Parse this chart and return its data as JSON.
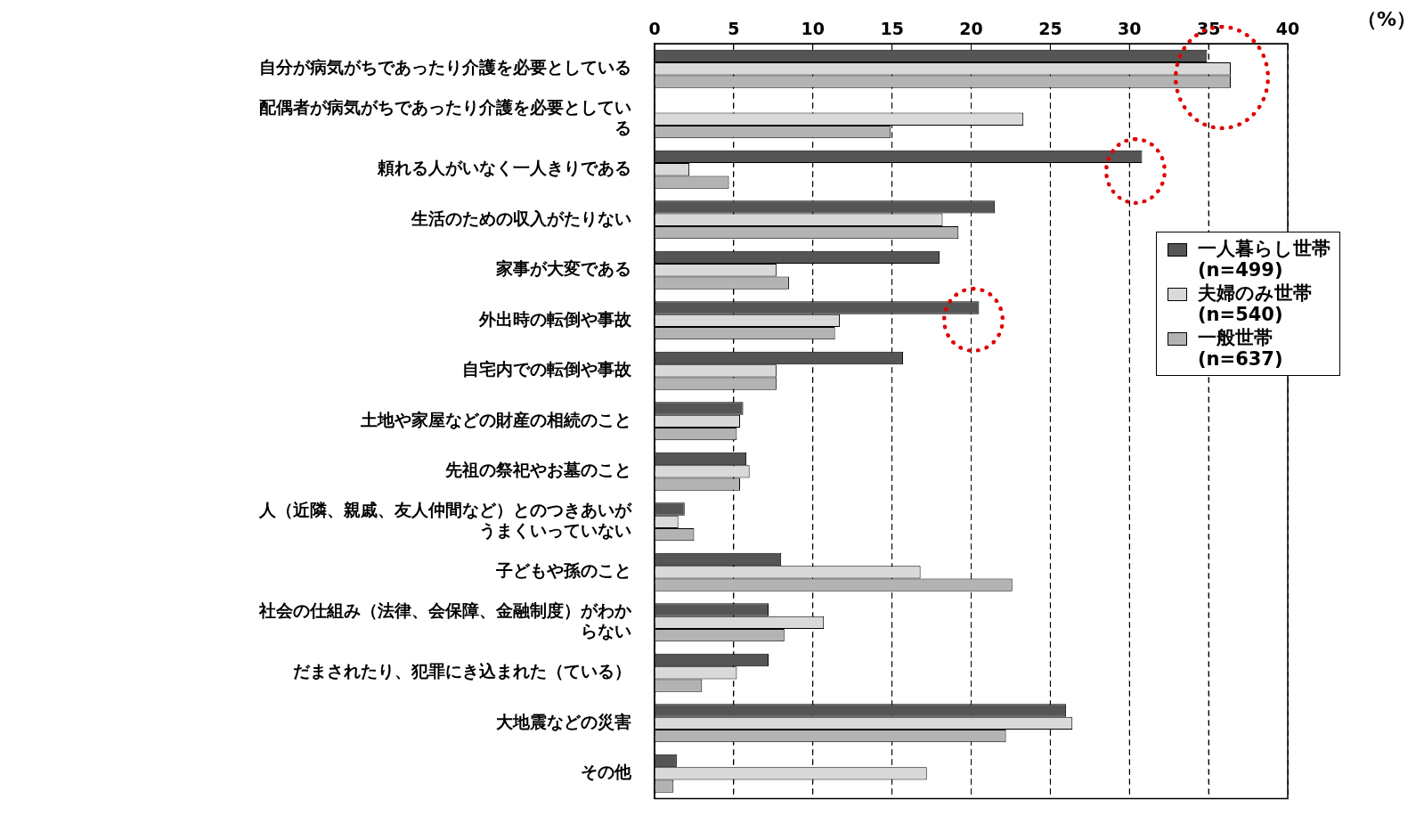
{
  "chart_data": {
    "type": "bar",
    "orientation": "horizontal",
    "xlabel": "（%）",
    "categories": [
      "自分が病気がちであったり介護を必要としている",
      "配偶者が病気がちであったり介護を必要としている",
      "頼れる人がいなく一人きりである",
      "生活のための収入がたりない",
      "家事が大変である",
      "外出時の転倒や事故",
      "自宅内での転倒や事故",
      "土地や家屋などの財産の相続のこと",
      "先祖の祭祀やお墓のこと",
      "人（近隣、親戚、友人仲間など）とのつきあいがうまくいっていない",
      "子どもや孫のこと",
      "社会の仕組み（法律、会保障、金融制度）がわからない",
      "だまされたり、犯罪にき込まれた（ている）",
      "大地震などの災害",
      "その他"
    ],
    "series": [
      {
        "name": "一人暮らし世帯\n(n=499)",
        "color": "#555555",
        "values": [
          34.9,
          null,
          30.8,
          21.5,
          18.0,
          20.5,
          15.7,
          5.6,
          5.8,
          1.9,
          8.0,
          7.2,
          7.2,
          26.0,
          1.4
        ]
      },
      {
        "name": "夫婦のみ世帯\n(n=540)",
        "color": "#d9d9d9",
        "values": [
          36.4,
          23.3,
          2.2,
          18.2,
          7.7,
          11.7,
          7.7,
          5.4,
          6.0,
          1.5,
          16.8,
          10.7,
          5.2,
          26.4,
          17.2
        ]
      },
      {
        "name": "一般世帯\n(n=637)",
        "color": "#b3b3b3",
        "values": [
          36.4,
          14.9,
          4.7,
          19.2,
          8.5,
          11.4,
          7.7,
          5.2,
          5.4,
          2.5,
          22.6,
          8.2,
          3.0,
          22.2,
          1.2
        ]
      }
    ],
    "xlim": [
      0,
      40
    ],
    "xticks": [
      0,
      5,
      10,
      15,
      20,
      25,
      30,
      35,
      40
    ],
    "grid": "x",
    "legend": "right"
  }
}
